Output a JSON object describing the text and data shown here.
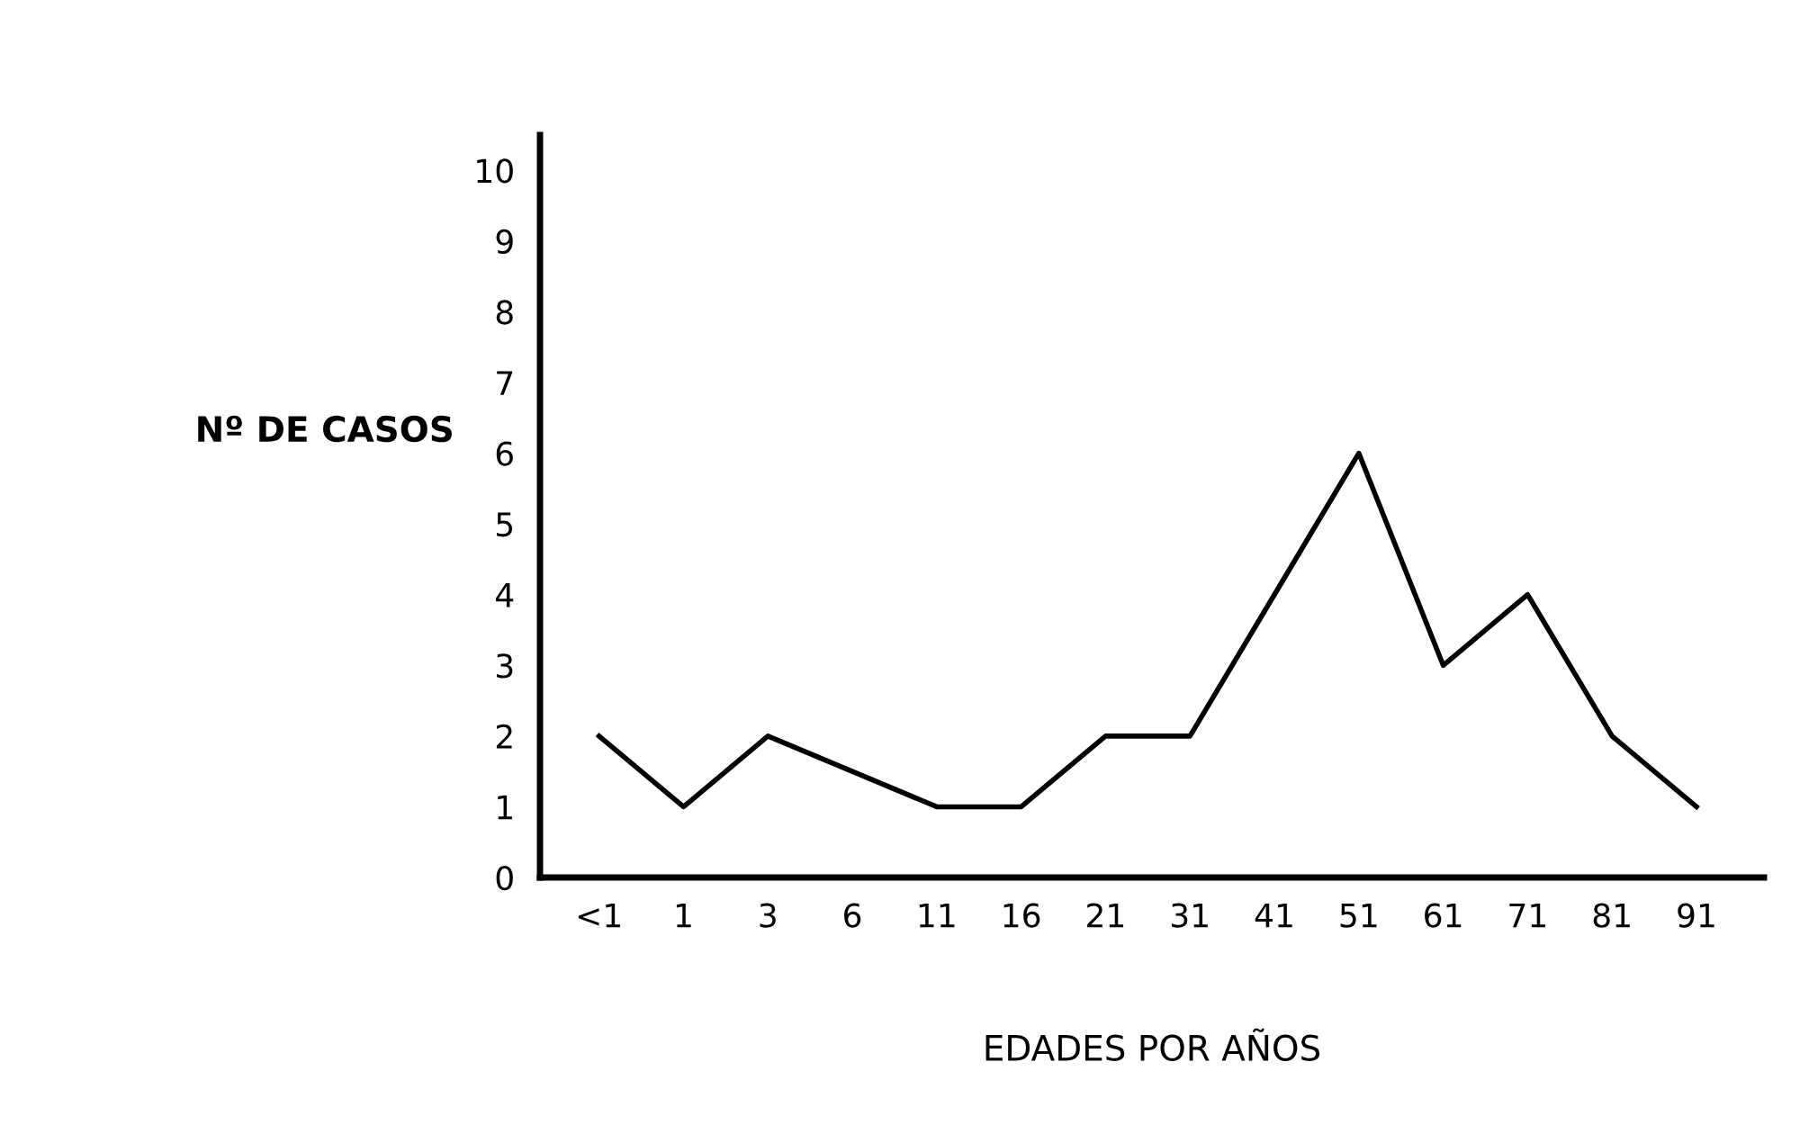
{
  "chart_data": {
    "type": "line",
    "xlabel": "EDADES POR AÑOS",
    "ylabel": "Nº DE CASOS",
    "categories": [
      "<1",
      "1",
      "3",
      "6",
      "11",
      "16",
      "21",
      "31",
      "41",
      "51",
      "61",
      "71",
      "81",
      "91"
    ],
    "series": [
      {
        "color": "#000000",
        "values": [
          2,
          1,
          2,
          1.5,
          1,
          1,
          2,
          2,
          4,
          6,
          3,
          4,
          2,
          1
        ]
      }
    ],
    "ylim": [
      0,
      10.5
    ],
    "yticks": [
      0,
      1,
      2,
      3,
      4,
      5,
      6,
      7,
      8,
      9,
      10
    ],
    "grid": false,
    "marker": "none",
    "line_style": "solid"
  }
}
